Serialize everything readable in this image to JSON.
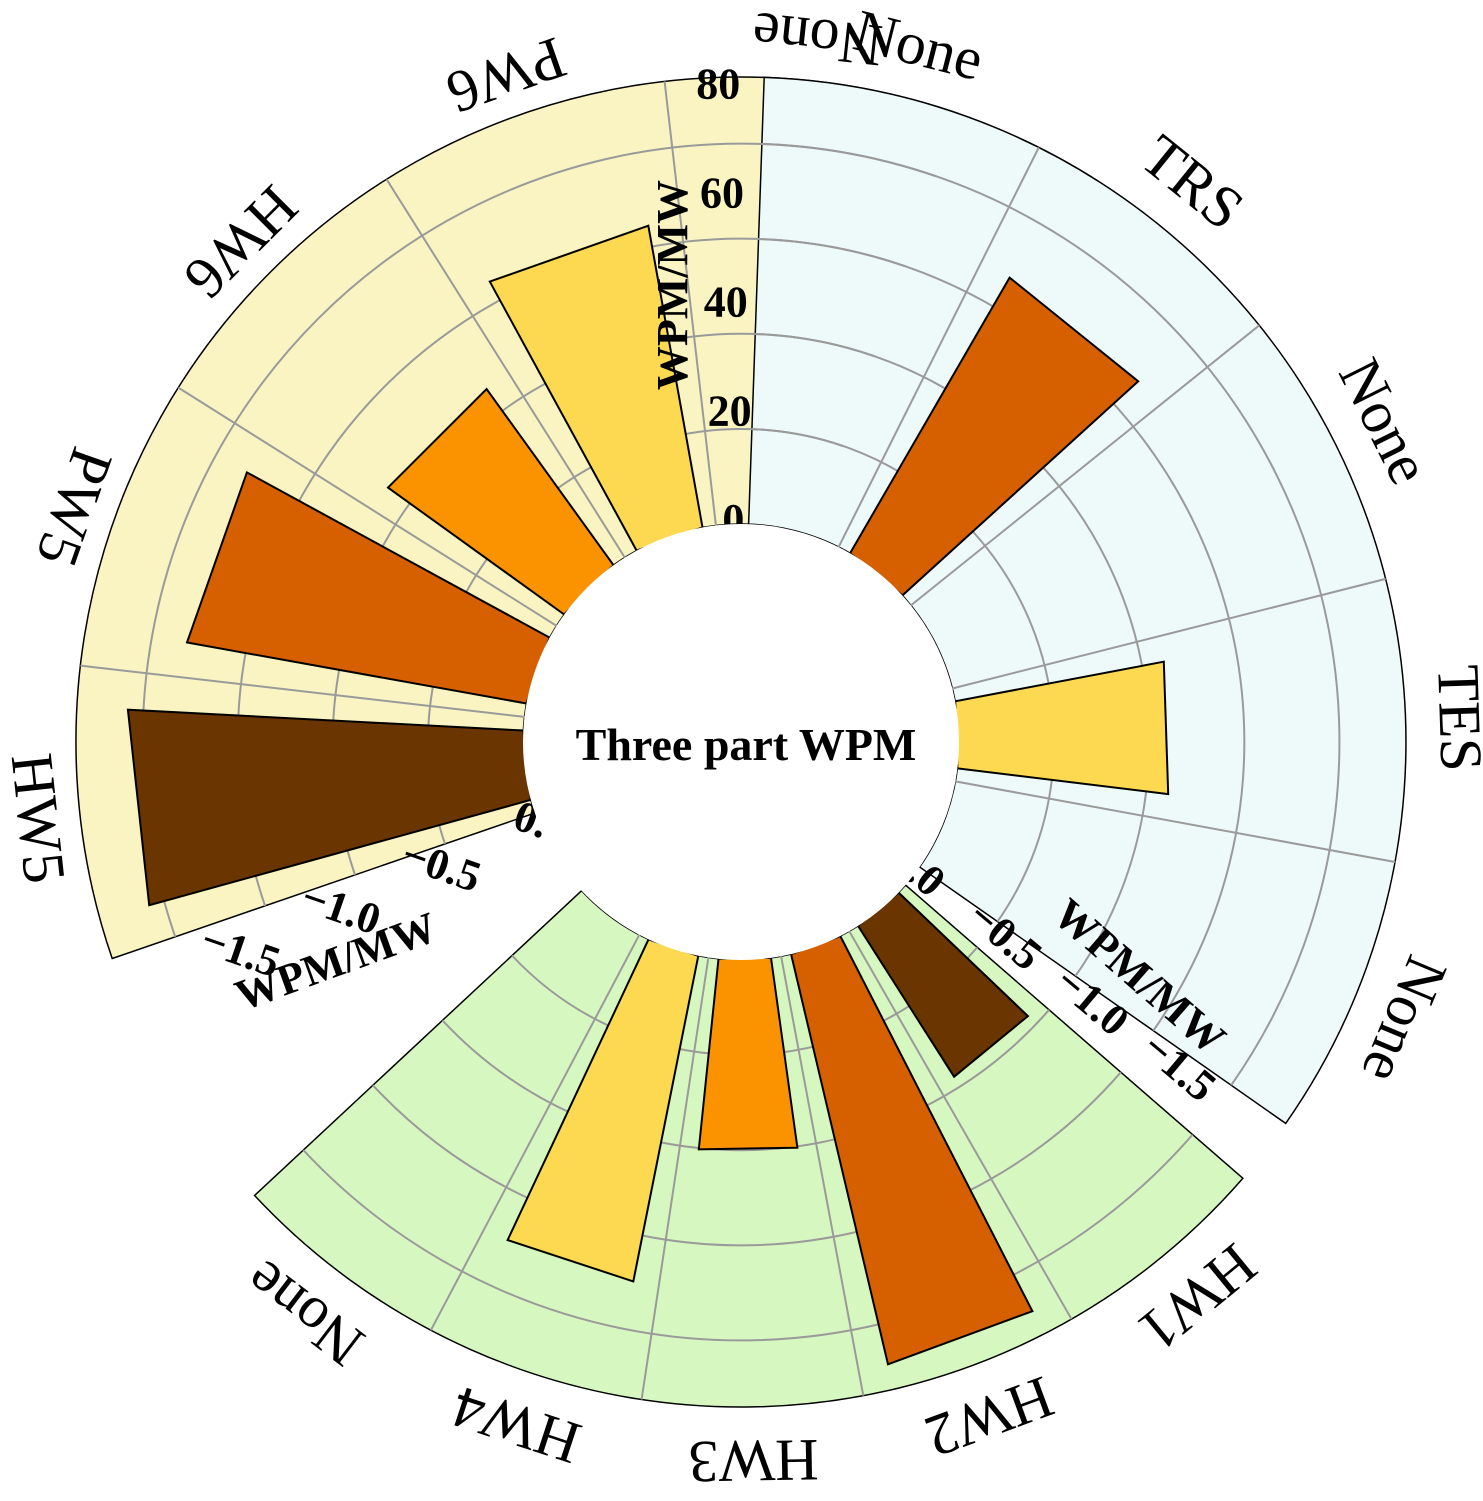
{
  "title": "Three part WPM",
  "chart_data": [
    {
      "type": "bar",
      "subtype": "radial",
      "sector": "left",
      "background_color": "#f9f4c2",
      "categories": [
        "HW5",
        "PW5",
        "HW6",
        "PW6",
        "None"
      ],
      "values": [
        -1.55,
        -1.35,
        -0.85,
        -1.2,
        0
      ],
      "bar_colors": [
        "#6b3500",
        "#d65f00",
        "#fb9200",
        "#fdd952",
        "#fdd952"
      ],
      "axis_label": "WPM/MW",
      "axis_ticks": [
        "0.0",
        "−0.5",
        "−1.0",
        "−1.5"
      ],
      "range": [
        -1.75,
        0
      ],
      "grid": true
    },
    {
      "type": "bar",
      "subtype": "radial",
      "sector": "right",
      "background_color": "#eef9f9",
      "categories": [
        "None",
        "TRS",
        "None",
        "TES",
        "None"
      ],
      "values": [
        0,
        57,
        0,
        38,
        0
      ],
      "bar_colors": [
        "#fdd952",
        "#d65f00",
        "#fdd952",
        "#fdd952",
        "#fdd952"
      ],
      "axis_label": "WPM/MW",
      "axis_ticks": [
        "0",
        "20",
        "40",
        "60",
        "80"
      ],
      "range": [
        0,
        80
      ],
      "grid": true
    },
    {
      "type": "bar",
      "subtype": "radial",
      "sector": "bottom",
      "background_color": "#d7f7c0",
      "categories": [
        "HW1",
        "HW2",
        "HW3",
        "HW4",
        "None"
      ],
      "values": [
        -0.7,
        -1.65,
        -0.75,
        -1.3,
        0
      ],
      "bar_colors": [
        "#6b3500",
        "#d65f00",
        "#fb9200",
        "#fdd952",
        "#fdd952"
      ],
      "axis_label": "WPM/MW",
      "axis_ticks": [
        "0.0",
        "−0.5",
        "−1.0",
        "−1.5"
      ],
      "range": [
        -1.75,
        0
      ],
      "grid": true
    }
  ]
}
